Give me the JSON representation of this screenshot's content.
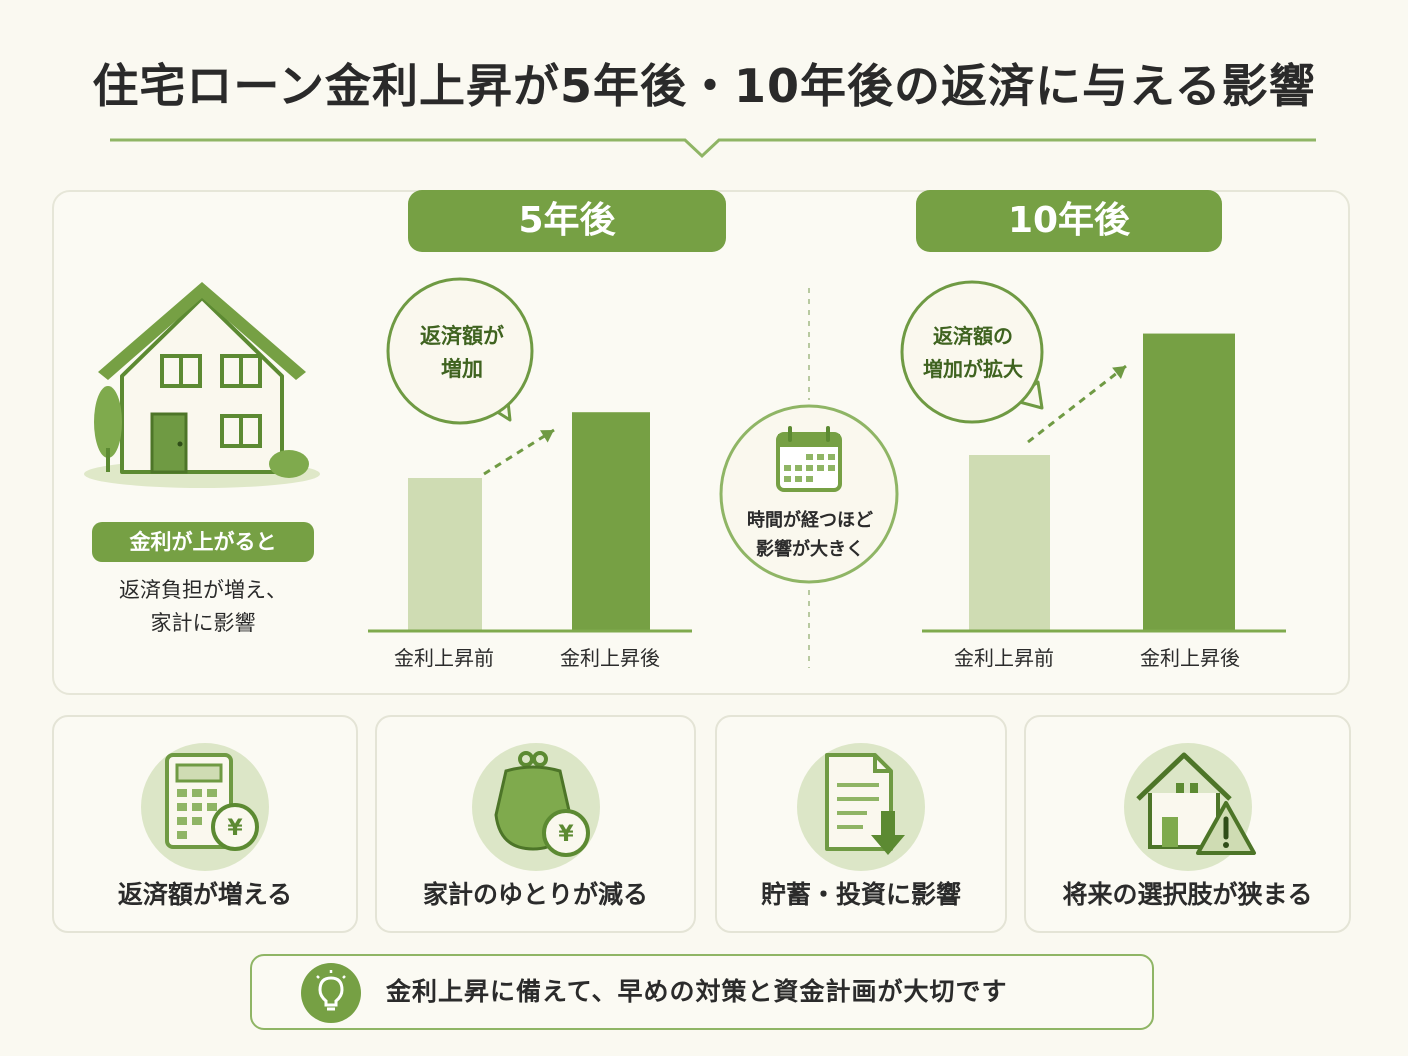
{
  "title": "住宅ローン金利上昇が5年後・10年後の返済に与える影響",
  "colors": {
    "accent": "#76a044",
    "accent_light": "#cfdcb3",
    "accent_dark": "#5c8a32",
    "bg": "#faf9f1"
  },
  "main": {
    "label_5y": "5年後",
    "label_10y": "10年後",
    "house_icon": "house-icon",
    "rise_tag": "金利が上がると",
    "rise_text_1": "返済負担が増え、",
    "rise_text_2": "家計に影響",
    "bubble_5y_line1": "返済額が",
    "bubble_5y_line2": "増加",
    "bubble_10y_line1": "返済額の",
    "bubble_10y_line2": "増加が拡大",
    "calendar_icon": "calendar-icon",
    "calendar_text_1": "時間が経つほど",
    "calendar_text_2": "影響が大きく"
  },
  "chart_data": [
    {
      "type": "bar",
      "title": "5年後",
      "categories": [
        "金利上昇前",
        "金利上昇後"
      ],
      "values": [
        1.0,
        1.43
      ],
      "ylim": [
        0,
        2.0
      ],
      "xlabel": "",
      "ylabel": "",
      "grid": false,
      "colors": [
        "#cfdcb3",
        "#76a044"
      ]
    },
    {
      "type": "bar",
      "title": "10年後",
      "categories": [
        "金利上昇前",
        "金利上昇後"
      ],
      "values": [
        1.0,
        1.69
      ],
      "ylim": [
        0,
        2.0
      ],
      "xlabel": "",
      "ylabel": "",
      "grid": false,
      "colors": [
        "#cfdcb3",
        "#76a044"
      ]
    }
  ],
  "cards": [
    {
      "icon": "calculator-yen-icon",
      "label": "返済額が増える"
    },
    {
      "icon": "wallet-yen-icon",
      "label": "家計のゆとりが減る"
    },
    {
      "icon": "document-down-arrow-icon",
      "label": "貯蓄・投資に影響"
    },
    {
      "icon": "house-warning-icon",
      "label": "将来の選択肢が狭まる"
    }
  ],
  "footer": {
    "icon": "lightbulb-icon",
    "text": "金利上昇に備えて、早めの対策と資金計画が大切です"
  }
}
